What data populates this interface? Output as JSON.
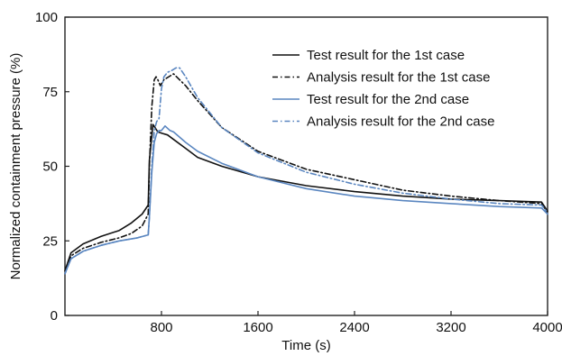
{
  "chart_data": {
    "type": "line",
    "title": "",
    "xlabel": "Time (s)",
    "ylabel": "Normalized containment pressure (%)",
    "xlim": [
      0,
      4000
    ],
    "ylim": [
      0,
      100
    ],
    "xticks": [
      800,
      1600,
      2400,
      3200,
      4000
    ],
    "xtick_labels": [
      "800",
      "1600",
      "2400",
      "3200",
      "4000"
    ],
    "yticks": [
      0,
      25,
      50,
      75,
      100
    ],
    "ytick_labels": [
      "0",
      "25",
      "50",
      "75",
      "100"
    ],
    "grid": false,
    "legend": "top-right",
    "series": [
      {
        "name": "Test result for the 1st case",
        "color": "#111111",
        "dash": "solid",
        "x": [
          0,
          50,
          150,
          300,
          450,
          550,
          640,
          690,
          700,
          730,
          770,
          810,
          850,
          900,
          1000,
          1100,
          1300,
          1600,
          2000,
          2400,
          2800,
          3200,
          3600,
          3950,
          4000
        ],
        "y": [
          15,
          21,
          24,
          26.5,
          28.5,
          31,
          34,
          37,
          52,
          64,
          61.5,
          61,
          60.5,
          59,
          56,
          53,
          50,
          46.5,
          43.5,
          41.5,
          40,
          39,
          38.5,
          38,
          35
        ]
      },
      {
        "name": "Analysis result for the 1st case",
        "color": "#111111",
        "dash": "6,3,1.5,3",
        "x": [
          0,
          50,
          150,
          300,
          450,
          550,
          640,
          690,
          700,
          720,
          740,
          755,
          770,
          790,
          820,
          900,
          1000,
          1100,
          1300,
          1600,
          2000,
          2400,
          2800,
          3200,
          3600,
          3950,
          4000
        ],
        "y": [
          14,
          20,
          22.5,
          24.5,
          26,
          27.5,
          30,
          34,
          50,
          70,
          79,
          80,
          79,
          77,
          79,
          81,
          77,
          72,
          63,
          55,
          49,
          45.5,
          42,
          40,
          38.5,
          37.5,
          34.5
        ]
      },
      {
        "name": "Test result for the 2nd case",
        "color": "#5a86c0",
        "dash": "solid",
        "x": [
          0,
          50,
          150,
          300,
          450,
          600,
          690,
          700,
          720,
          740,
          760,
          780,
          800,
          830,
          870,
          900,
          1000,
          1100,
          1300,
          1600,
          2000,
          2400,
          2800,
          3200,
          3600,
          3950,
          4000
        ],
        "y": [
          14,
          19,
          21.5,
          23.5,
          25,
          26,
          27,
          33,
          48,
          58,
          61,
          62,
          62,
          63.5,
          62,
          61.5,
          58,
          55,
          51,
          46.5,
          42.5,
          40,
          38.5,
          37.5,
          36.5,
          36,
          34
        ]
      },
      {
        "name": "Analysis result for the 2nd case",
        "color": "#5a86c0",
        "dash": "6,3,1.5,3",
        "x": [
          0,
          50,
          150,
          300,
          450,
          600,
          690,
          700,
          720,
          740,
          760,
          780,
          800,
          820,
          850,
          880,
          920,
          950,
          1000,
          1100,
          1300,
          1600,
          2000,
          2400,
          2800,
          3200,
          3600,
          3950,
          4000
        ],
        "y": [
          14,
          19,
          21.5,
          23.5,
          25,
          26,
          27,
          33,
          50,
          62,
          65,
          66,
          76,
          80,
          81.5,
          82,
          83,
          83,
          80,
          73,
          63,
          54.5,
          48,
          44,
          41,
          39,
          37.5,
          37,
          34.5
        ]
      }
    ]
  }
}
